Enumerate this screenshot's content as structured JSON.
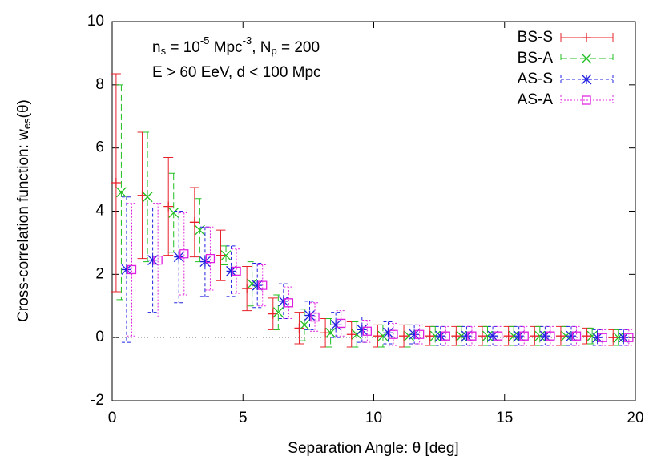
{
  "chart_data": {
    "type": "errorbar",
    "xlabel": "Separation Angle: θ [deg]",
    "ylabel": [
      "Cross-correlation function: w",
      "es",
      "(θ)"
    ],
    "annotations": [
      [
        "n",
        "s",
        " = 10",
        "-5",
        " Mpc",
        "-3",
        ", N",
        "p",
        " = 200"
      ],
      "E > 60 EeV, d < 100 Mpc"
    ],
    "xlim": [
      0,
      20
    ],
    "ylim": [
      -2,
      10
    ],
    "xticks": [
      0,
      5,
      10,
      15,
      20
    ],
    "yticks": [
      -2,
      0,
      2,
      4,
      6,
      8,
      10
    ],
    "zero_line": true,
    "legend": "top-right",
    "series": [
      {
        "name": "BS-S",
        "color": "#e8202a",
        "marker": "plus",
        "dash": "",
        "x": [
          0.15,
          1.15,
          2.15,
          3.15,
          4.15,
          5.15,
          6.15,
          7.15,
          8.15,
          9.15,
          10.15,
          11.15,
          12.15,
          13.15,
          14.15,
          15.15,
          16.15,
          17.15,
          18.15,
          19.15
        ],
        "values": [
          4.9,
          4.5,
          4.15,
          3.65,
          2.6,
          1.55,
          0.75,
          0.3,
          0.15,
          0.1,
          0.05,
          0.05,
          0.05,
          0.05,
          0.05,
          0.05,
          0.05,
          0.05,
          0.05,
          0.0
        ],
        "errors": [
          3.45,
          2.0,
          1.55,
          1.1,
          0.8,
          0.7,
          0.5,
          0.5,
          0.45,
          0.4,
          0.35,
          0.35,
          0.3,
          0.3,
          0.3,
          0.3,
          0.3,
          0.3,
          0.25,
          0.25
        ]
      },
      {
        "name": "BS-A",
        "color": "#20c020",
        "marker": "cross",
        "dash": "8,4",
        "x": [
          0.35,
          1.35,
          2.35,
          3.35,
          4.35,
          5.35,
          6.35,
          7.35,
          8.35,
          9.35,
          10.35,
          11.35,
          12.35,
          13.35,
          14.35,
          15.35,
          16.35,
          17.35,
          18.35,
          19.35
        ],
        "values": [
          4.6,
          4.45,
          3.95,
          3.4,
          2.6,
          1.7,
          0.8,
          0.4,
          0.15,
          0.1,
          0.05,
          0.05,
          0.05,
          0.05,
          0.05,
          0.05,
          0.05,
          0.05,
          0.05,
          0.0
        ],
        "errors": [
          3.4,
          2.05,
          1.25,
          1.0,
          0.3,
          0.7,
          0.55,
          0.5,
          0.45,
          0.4,
          0.35,
          0.35,
          0.3,
          0.3,
          0.3,
          0.3,
          0.3,
          0.3,
          0.25,
          0.25
        ]
      },
      {
        "name": "AS-S",
        "color": "#2020e0",
        "marker": "star",
        "dash": "4,3",
        "x": [
          0.55,
          1.55,
          2.55,
          3.55,
          4.55,
          5.55,
          6.55,
          7.55,
          8.55,
          9.55,
          10.55,
          11.55,
          12.55,
          13.55,
          14.55,
          15.55,
          16.55,
          17.55,
          18.55,
          19.55
        ],
        "values": [
          2.15,
          2.45,
          2.55,
          2.4,
          2.1,
          1.65,
          1.15,
          0.7,
          0.4,
          0.25,
          0.15,
          0.1,
          0.05,
          0.05,
          0.05,
          0.05,
          0.05,
          0.05,
          0.0,
          0.0
        ],
        "errors": [
          2.3,
          1.65,
          1.45,
          1.1,
          0.8,
          0.7,
          0.55,
          0.45,
          0.4,
          0.4,
          0.35,
          0.3,
          0.3,
          0.3,
          0.3,
          0.3,
          0.3,
          0.3,
          0.25,
          0.25
        ]
      },
      {
        "name": "AS-A",
        "color": "#e020e0",
        "marker": "square",
        "dash": "2,2",
        "x": [
          0.75,
          1.75,
          2.75,
          3.75,
          4.75,
          5.75,
          6.75,
          7.75,
          8.75,
          9.75,
          10.75,
          11.75,
          12.75,
          13.75,
          14.75,
          15.75,
          16.75,
          17.75,
          18.75,
          19.75
        ],
        "values": [
          2.15,
          2.45,
          2.65,
          2.5,
          2.1,
          1.65,
          1.1,
          0.65,
          0.45,
          0.2,
          0.1,
          0.1,
          0.05,
          0.05,
          0.05,
          0.05,
          0.05,
          0.05,
          0.0,
          0.0
        ],
        "errors": [
          2.1,
          1.8,
          1.3,
          1.0,
          0.7,
          0.65,
          0.5,
          0.45,
          0.4,
          0.35,
          0.35,
          0.3,
          0.3,
          0.3,
          0.3,
          0.3,
          0.3,
          0.3,
          0.25,
          0.25
        ]
      }
    ]
  }
}
